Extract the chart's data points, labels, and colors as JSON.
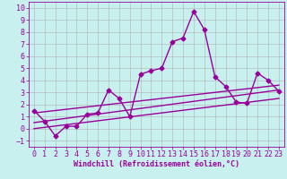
{
  "xlabel": "Windchill (Refroidissement éolien,°C)",
  "background_color": "#c8f0ee",
  "grid_color": "#b0b0b0",
  "line_color": "#990099",
  "xlim": [
    -0.5,
    23.5
  ],
  "ylim": [
    -1.5,
    10.5
  ],
  "yticks": [
    -1,
    0,
    1,
    2,
    3,
    4,
    5,
    6,
    7,
    8,
    9,
    10
  ],
  "xticks": [
    0,
    1,
    2,
    3,
    4,
    5,
    6,
    7,
    8,
    9,
    10,
    11,
    12,
    13,
    14,
    15,
    16,
    17,
    18,
    19,
    20,
    21,
    22,
    23
  ],
  "line1_x": [
    0,
    1,
    2,
    3,
    4,
    5,
    6,
    7,
    8,
    9,
    10,
    11,
    12,
    13,
    14,
    15,
    16,
    17,
    18,
    19,
    20,
    21,
    22,
    23
  ],
  "line1_y": [
    1.5,
    0.6,
    -0.6,
    0.2,
    0.2,
    1.2,
    1.3,
    3.2,
    2.5,
    1.0,
    4.5,
    4.8,
    5.0,
    7.2,
    7.5,
    9.7,
    8.2,
    4.3,
    3.5,
    2.2,
    2.1,
    4.6,
    4.0,
    3.1
  ],
  "line2_x": [
    0,
    23
  ],
  "line2_y": [
    0.0,
    2.5
  ],
  "line3_x": [
    0,
    23
  ],
  "line3_y": [
    0.5,
    3.2
  ],
  "line4_x": [
    0,
    23
  ],
  "line4_y": [
    1.3,
    3.6
  ],
  "marker": "D",
  "markersize": 2.5,
  "linewidth": 1.0,
  "tick_fontsize": 6.0,
  "xlabel_fontsize": 6.0
}
